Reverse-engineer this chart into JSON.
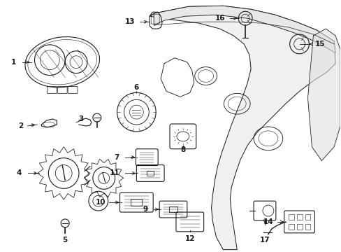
{
  "background_color": "#ffffff",
  "line_color": "#1a1a1a",
  "fig_width": 4.89,
  "fig_height": 3.6,
  "dpi": 100,
  "font_size": 7.5
}
